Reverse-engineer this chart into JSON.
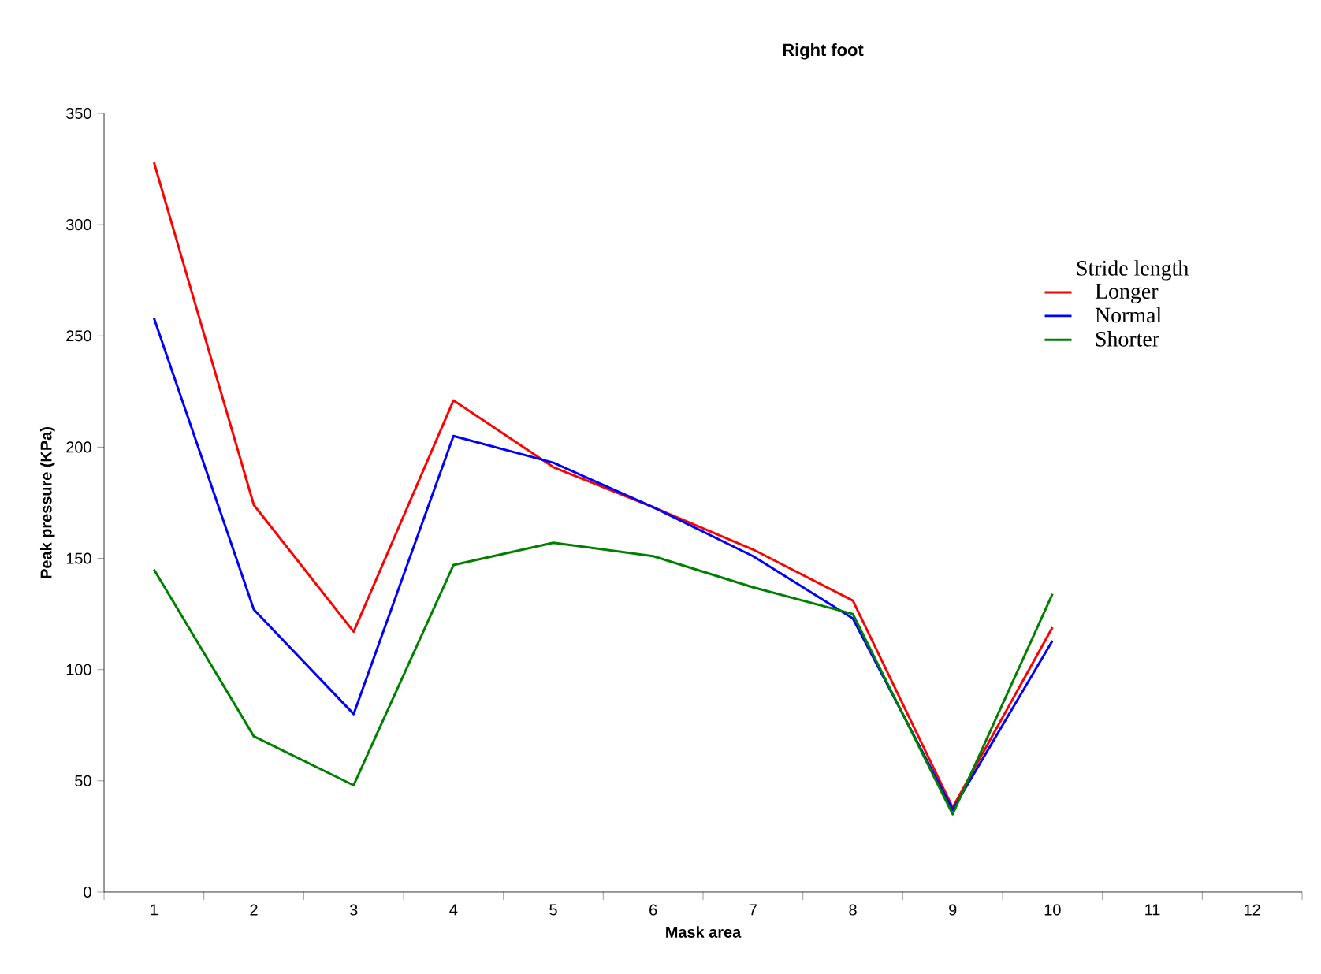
{
  "chart_data": {
    "type": "line",
    "title": "Right foot",
    "xlabel": "Mask area",
    "ylabel": "Peak pressure (KPa)",
    "legend_title": "Stride length",
    "legend": "right",
    "grid": false,
    "marker": "none",
    "line_style": "solid",
    "categories": [
      "1",
      "2",
      "3",
      "4",
      "5",
      "6",
      "7",
      "8",
      "9",
      "10",
      "11",
      "12"
    ],
    "ylim": [
      0,
      350
    ],
    "yticks": [
      0,
      50,
      100,
      150,
      200,
      250,
      300,
      350
    ],
    "series": [
      {
        "name": "Longer",
        "color": "#ff0000",
        "values": [
          328,
          174,
          117,
          221,
          191,
          173,
          154,
          131,
          38,
          119,
          null,
          null
        ]
      },
      {
        "name": "Normal",
        "color": "#0000ff",
        "values": [
          258,
          127,
          80,
          205,
          193,
          173,
          151,
          123,
          37,
          113,
          null,
          null
        ]
      },
      {
        "name": "Shorter",
        "color": "#008000",
        "values": [
          145,
          70,
          48,
          147,
          157,
          151,
          137,
          125,
          35,
          134,
          null,
          null
        ]
      }
    ]
  }
}
